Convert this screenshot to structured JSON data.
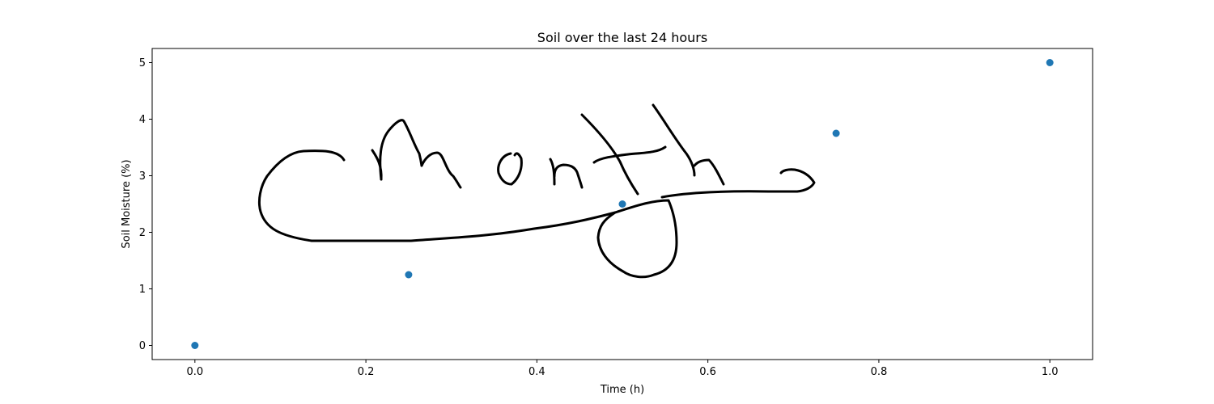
{
  "chart_data": {
    "type": "scatter",
    "title": "Soil over the last 24 hours",
    "xlabel": "Time (h)",
    "ylabel": "Soil Moisture (%)",
    "xlim": [
      -0.05,
      1.05
    ],
    "ylim": [
      -0.25,
      5.25
    ],
    "x_ticks": [
      0.0,
      0.2,
      0.4,
      0.6,
      0.8,
      1.0
    ],
    "x_tick_labels": [
      "0.0",
      "0.2",
      "0.4",
      "0.6",
      "0.8",
      "1.0"
    ],
    "y_ticks": [
      0,
      1,
      2,
      3,
      4,
      5
    ],
    "y_tick_labels": [
      "0",
      "1",
      "2",
      "3",
      "4",
      "5"
    ],
    "grid": false,
    "legend": "none",
    "marker_color": "#1f77b4",
    "series": [
      {
        "x": [
          0.0,
          0.25,
          0.5,
          0.75,
          1.0
        ],
        "y": [
          0.0,
          1.25,
          2.5,
          3.75,
          5.0
        ]
      }
    ],
    "annotations": [
      {
        "kind": "handwritten-signature",
        "text": "Chongzhen",
        "color": "#000000"
      }
    ]
  }
}
